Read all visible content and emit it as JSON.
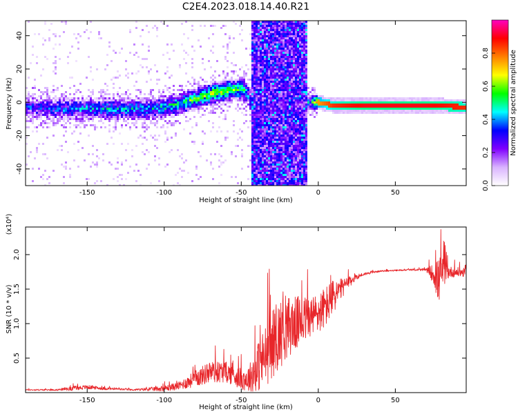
{
  "figure": {
    "title": "C2E4.2023.018.14.40.R21"
  },
  "chart_data": [
    {
      "type": "heatmap",
      "xlabel": "Height of straight line (km)",
      "ylabel": "Frequency (Hz)",
      "xlim": [
        -190,
        96
      ],
      "ylim": [
        -50,
        49
      ],
      "x_ticks": [
        -150,
        -100,
        -50,
        0,
        50
      ],
      "y_ticks": [
        -40,
        -20,
        0,
        20,
        40
      ],
      "colorbar": {
        "label": "Normalized spectral amplitude",
        "range": [
          0,
          1
        ],
        "ticks": [
          "0.0",
          "0.2",
          "0.4",
          "0.6",
          "0.8"
        ],
        "tick_values": [
          0.0,
          0.2,
          0.4,
          0.6,
          0.8
        ],
        "colormap": [
          "#ffffff",
          "#d9b3ff",
          "#8000ff",
          "#0000ff",
          "#00ffff",
          "#00ff00",
          "#ffff00",
          "#ff8000",
          "#ff0000",
          "#ff00c0"
        ]
      },
      "ridge": {
        "x": [
          -190,
          -170,
          -150,
          -130,
          -110,
          -100,
          -90,
          -80,
          -70,
          -60,
          -50,
          -46,
          -44,
          -5,
          0,
          10,
          30,
          50,
          70,
          80,
          96
        ],
        "freq": [
          -3,
          -4,
          -4,
          -4,
          -4,
          -3,
          -1,
          2,
          5,
          7,
          8,
          6,
          0,
          0,
          0,
          -2,
          -2,
          -2,
          -2,
          -2,
          -3
        ],
        "amplitude": [
          0.3,
          0.35,
          0.4,
          0.42,
          0.42,
          0.45,
          0.5,
          0.55,
          0.6,
          0.62,
          0.55,
          0.4,
          0.3,
          0.4,
          0.75,
          0.85,
          0.9,
          0.9,
          0.9,
          0.88,
          0.85
        ]
      },
      "broadband_band_x": [
        -43,
        -7
      ]
    },
    {
      "type": "line",
      "xlabel": "Height of straight line (km)",
      "ylabel": "SNR (10 * v/v)",
      "y_multiplier": "(x10⁴)",
      "xlim": [
        -190,
        96
      ],
      "ylim": [
        0,
        2.4
      ],
      "x_ticks": [
        -150,
        -100,
        -50,
        0,
        50
      ],
      "y_ticks": [
        "0.5",
        "1.0",
        "1.5",
        "2.0"
      ],
      "y_tick_values": [
        0.5,
        1.0,
        1.5,
        2.0
      ],
      "series": [
        {
          "color": "#e8262a",
          "x": [
            -190,
            -170,
            -160,
            -150,
            -140,
            -120,
            -100,
            -90,
            -80,
            -70,
            -60,
            -50,
            -45,
            -40,
            -35,
            -30,
            -25,
            -20,
            -15,
            -10,
            -5,
            0,
            5,
            10,
            15,
            20,
            25,
            30,
            40,
            50,
            60,
            70,
            75,
            78,
            80,
            85,
            96
          ],
          "values": [
            0.04,
            0.04,
            0.06,
            0.08,
            0.06,
            0.04,
            0.06,
            0.1,
            0.2,
            0.3,
            0.3,
            0.2,
            0.2,
            0.35,
            0.5,
            0.7,
            0.85,
            0.95,
            1.0,
            1.05,
            1.1,
            1.15,
            1.25,
            1.4,
            1.5,
            1.6,
            1.68,
            1.72,
            1.76,
            1.77,
            1.78,
            1.78,
            1.72,
            1.6,
            1.75,
            1.75,
            1.74
          ],
          "noise": [
            0.01,
            0.01,
            0.03,
            0.03,
            0.02,
            0.01,
            0.04,
            0.06,
            0.12,
            0.16,
            0.15,
            0.15,
            0.2,
            0.35,
            0.45,
            0.5,
            0.5,
            0.45,
            0.4,
            0.35,
            0.3,
            0.3,
            0.3,
            0.25,
            0.15,
            0.08,
            0.04,
            0.02,
            0.01,
            0.01,
            0.01,
            0.02,
            0.15,
            0.35,
            0.25,
            0.08,
            0.06
          ]
        }
      ]
    }
  ]
}
